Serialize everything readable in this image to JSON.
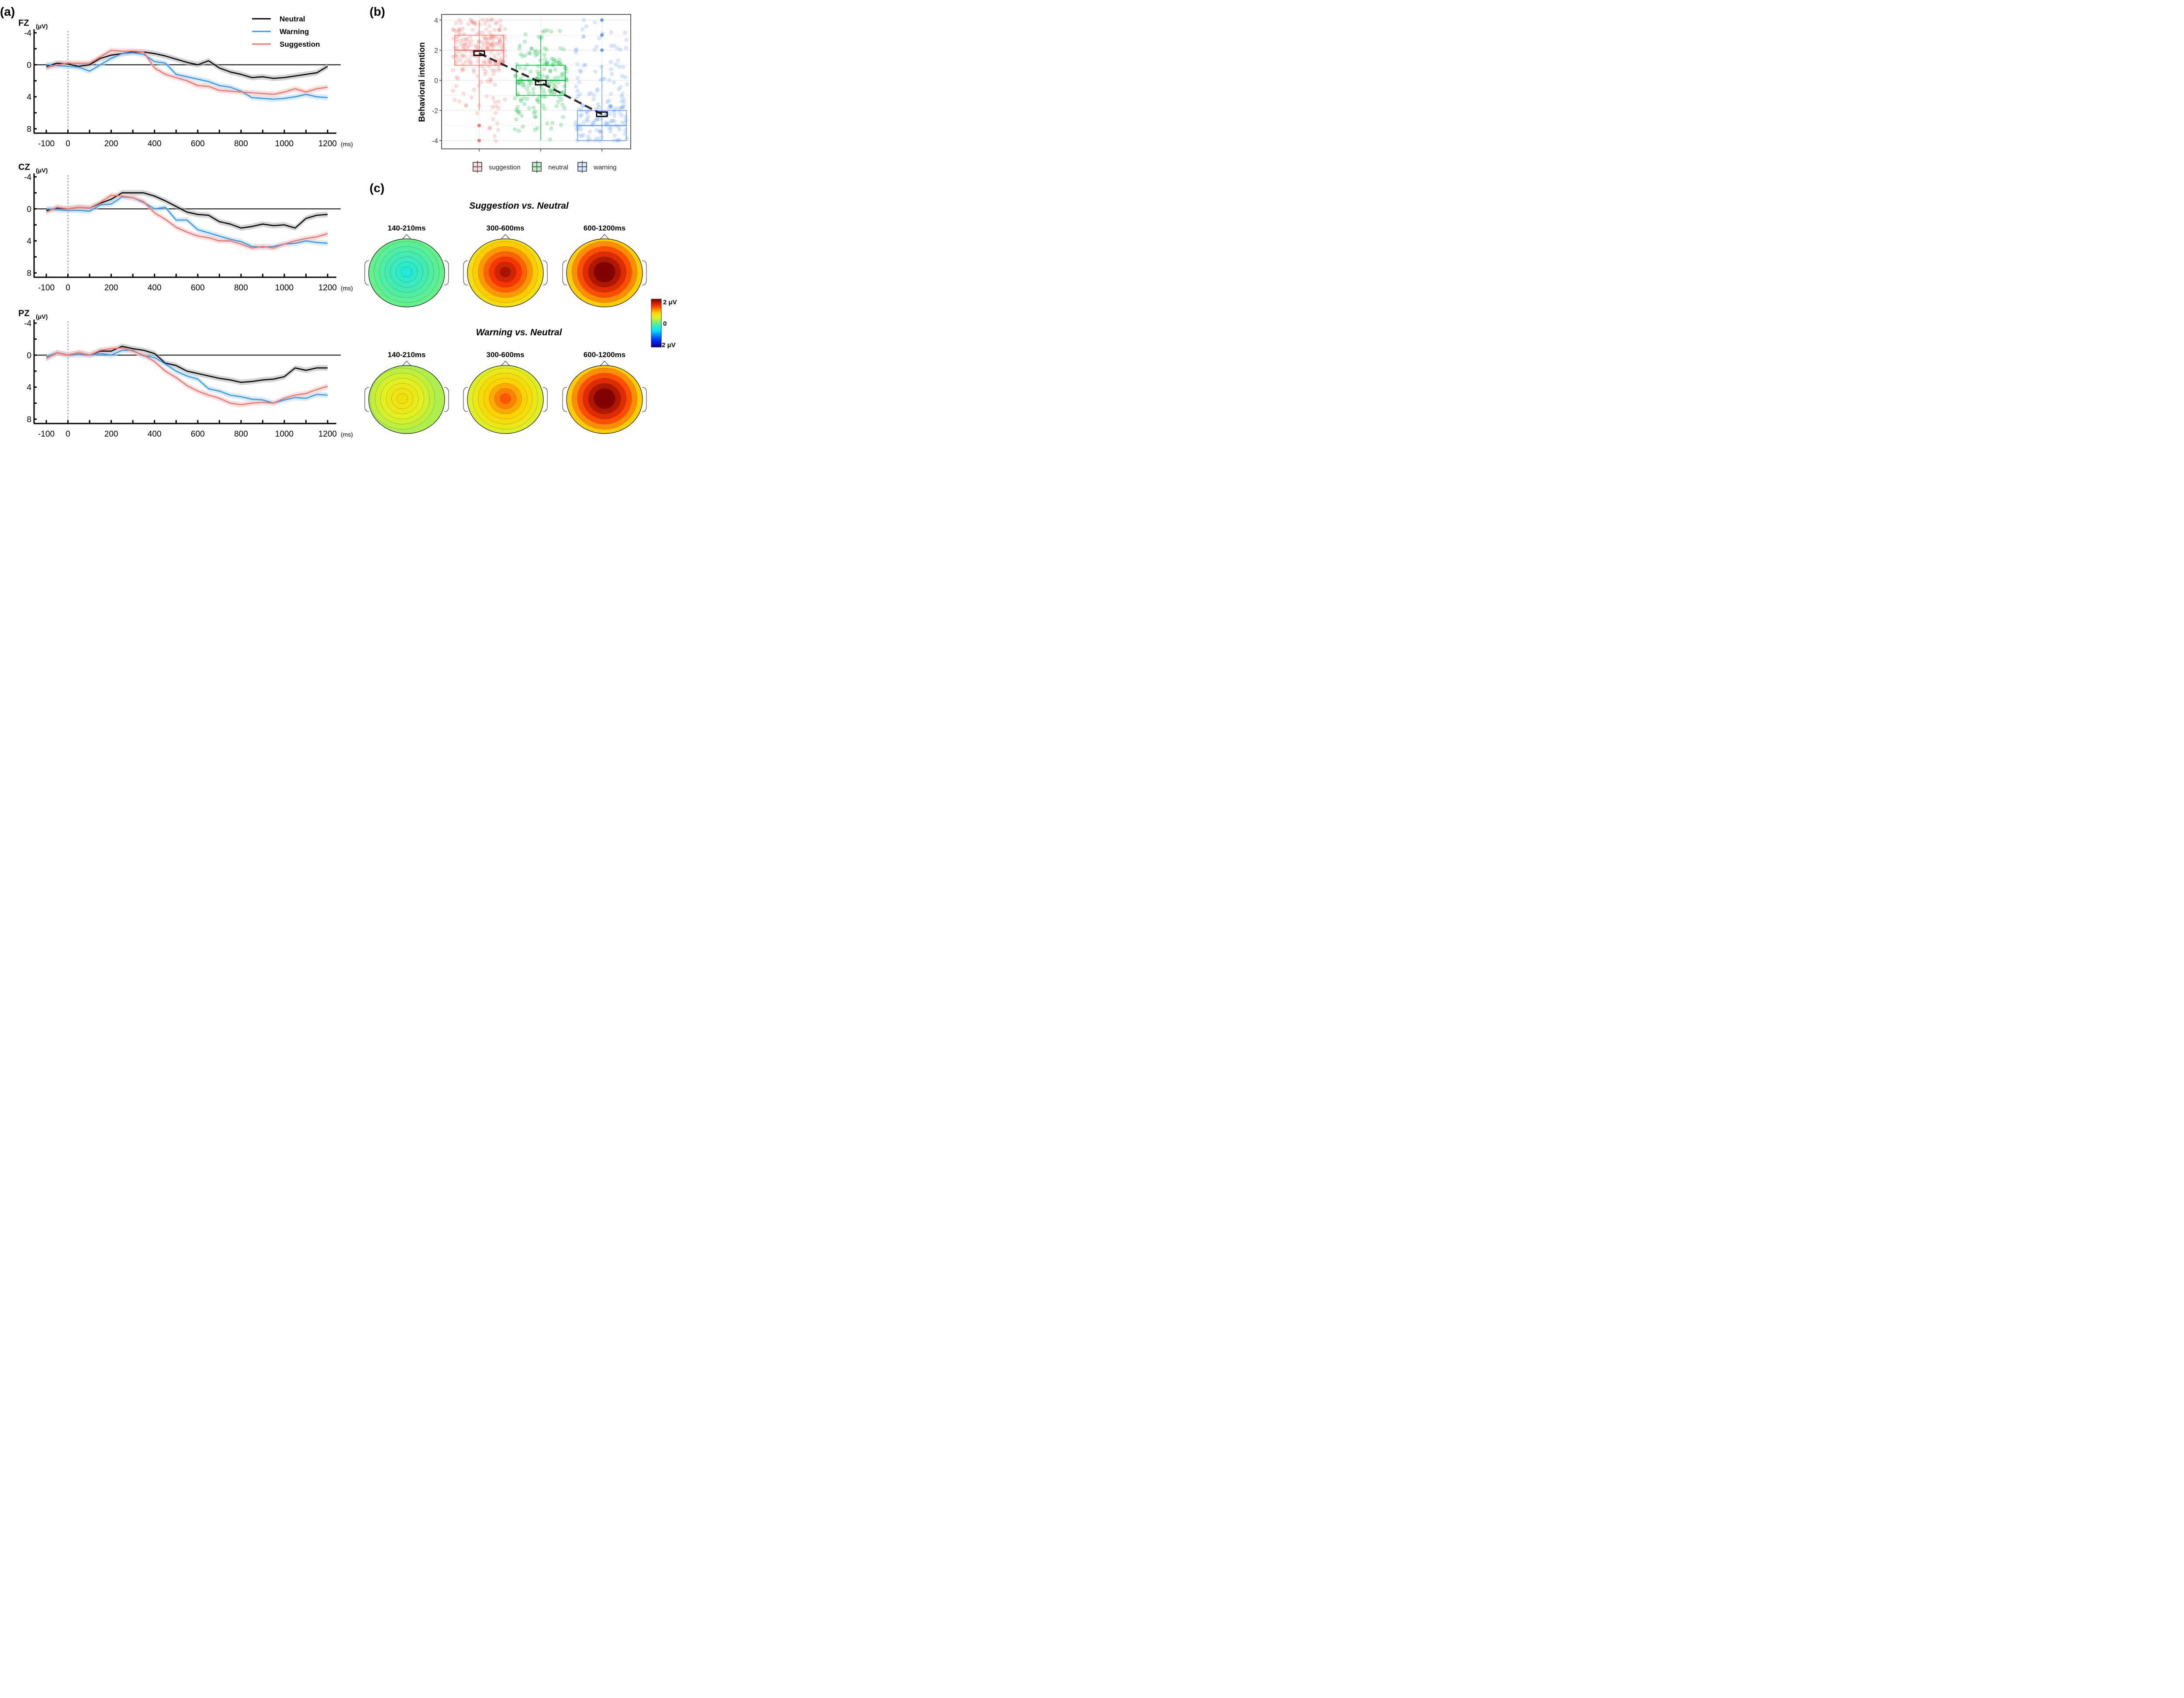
{
  "panel_labels": {
    "a": "(a)",
    "b": "(b)",
    "c": "(c)"
  },
  "chart_data": [
    {
      "type": "line",
      "panel": "a",
      "channels": [
        {
          "name": "FZ",
          "unit": "(μV)"
        },
        {
          "name": "CZ",
          "unit": "(μV)"
        },
        {
          "name": "PZ",
          "unit": "(μV)"
        }
      ],
      "xlabel_unit": "(ms)",
      "xticks": [
        -100,
        0,
        200,
        400,
        600,
        800,
        1000,
        1200
      ],
      "xlim": [
        -100,
        1200
      ],
      "yticks": [
        -4,
        0,
        4,
        8
      ],
      "ylim": [
        -4,
        8
      ],
      "y_inverted": true,
      "onset_marker_ms": 0,
      "legend": [
        {
          "label": "Neutral",
          "color": "#000000"
        },
        {
          "label": "Warning",
          "color": "#3399ee"
        },
        {
          "label": "Suggestion",
          "color": "#f0746a"
        }
      ],
      "x": [
        -100,
        -50,
        0,
        50,
        100,
        150,
        200,
        250,
        300,
        350,
        400,
        450,
        500,
        550,
        600,
        650,
        700,
        750,
        800,
        850,
        900,
        950,
        1000,
        1050,
        1100,
        1150,
        1200
      ],
      "series_by_channel": {
        "FZ": [
          {
            "name": "Neutral",
            "values": [
              0.2,
              -0.2,
              -0.1,
              0.2,
              0.0,
              -0.8,
              -1.2,
              -1.4,
              -1.6,
              -1.6,
              -1.4,
              -1.1,
              -0.7,
              -0.3,
              0.0,
              -0.5,
              0.4,
              0.9,
              1.2,
              1.6,
              1.5,
              1.7,
              1.6,
              1.4,
              1.2,
              1.0,
              0.2
            ]
          },
          {
            "name": "Warning",
            "values": [
              0.0,
              0.1,
              0.2,
              0.3,
              0.8,
              0.0,
              -0.8,
              -1.4,
              -1.5,
              -1.3,
              -0.4,
              -0.2,
              1.2,
              1.5,
              1.8,
              2.1,
              2.6,
              2.8,
              3.3,
              4.1,
              4.2,
              4.3,
              4.2,
              4.0,
              3.7,
              4.0,
              4.1
            ]
          },
          {
            "name": "Suggestion",
            "values": [
              0.4,
              0.0,
              -0.2,
              -0.2,
              -0.2,
              -1.0,
              -1.8,
              -1.7,
              -1.7,
              -1.6,
              0.4,
              1.2,
              1.6,
              2.0,
              2.6,
              2.7,
              3.2,
              3.3,
              3.4,
              3.5,
              3.6,
              3.7,
              3.4,
              3.0,
              3.4,
              3.0,
              2.8
            ]
          }
        ],
        "CZ": [
          {
            "name": "Neutral",
            "values": [
              0.2,
              -0.1,
              0.0,
              -0.2,
              -0.1,
              -0.7,
              -1.2,
              -2.0,
              -2.0,
              -2.0,
              -1.6,
              -1.0,
              -0.3,
              0.4,
              0.7,
              0.8,
              1.6,
              1.9,
              2.4,
              2.2,
              1.9,
              2.1,
              2.0,
              2.4,
              1.2,
              0.8,
              0.7
            ]
          },
          {
            "name": "Warning",
            "values": [
              0.0,
              0.1,
              0.2,
              0.2,
              0.3,
              -0.5,
              -0.6,
              -1.5,
              -1.4,
              -0.8,
              0.0,
              -0.2,
              1.4,
              1.4,
              2.6,
              3.0,
              3.4,
              3.8,
              4.1,
              4.7,
              4.8,
              4.7,
              4.4,
              4.3,
              4.0,
              4.2,
              4.3
            ]
          },
          {
            "name": "Suggestion",
            "values": [
              0.4,
              -0.2,
              0.0,
              -0.2,
              -0.1,
              -0.8,
              -1.7,
              -1.6,
              -1.4,
              -0.9,
              0.5,
              1.3,
              2.3,
              2.9,
              3.4,
              3.6,
              4.0,
              4.0,
              4.4,
              4.9,
              4.7,
              4.9,
              4.4,
              4.0,
              3.7,
              3.5,
              3.1
            ]
          }
        ],
        "PZ": [
          {
            "name": "Neutral",
            "values": [
              0.4,
              -0.3,
              0.0,
              -0.3,
              0.0,
              -0.5,
              -0.5,
              -1.1,
              -0.8,
              -0.6,
              -0.2,
              1.0,
              1.3,
              2.0,
              2.3,
              2.6,
              2.9,
              3.1,
              3.4,
              3.3,
              3.1,
              3.0,
              2.7,
              1.6,
              1.9,
              1.6,
              1.6
            ]
          },
          {
            "name": "Warning",
            "values": [
              0.2,
              -0.3,
              0.0,
              -0.1,
              0.0,
              -0.2,
              0.0,
              -0.6,
              -0.6,
              0.1,
              0.3,
              1.1,
              2.0,
              2.6,
              3.0,
              4.2,
              4.5,
              5.0,
              5.2,
              5.5,
              5.6,
              6.0,
              5.6,
              5.3,
              5.4,
              4.9,
              5.0
            ]
          },
          {
            "name": "Suggestion",
            "values": [
              0.4,
              -0.3,
              0.0,
              -0.3,
              0.0,
              -0.6,
              -0.8,
              -0.9,
              -0.5,
              0.0,
              0.8,
              2.0,
              2.8,
              3.8,
              4.5,
              5.0,
              5.4,
              6.0,
              6.2,
              6.0,
              5.9,
              6.0,
              5.4,
              5.0,
              4.8,
              4.3,
              3.9
            ]
          }
        ]
      }
    },
    {
      "type": "scatter",
      "panel": "b",
      "subtype": "boxplot-with-jitter",
      "ylabel": "Behavioral intention",
      "yticks": [
        -4,
        -2,
        0,
        2,
        4
      ],
      "ylim": [
        -4.3,
        4.5
      ],
      "grid": true,
      "categories": [
        "suggestion",
        "neutral",
        "warning"
      ],
      "colors": [
        "#f8766d",
        "#00ba38",
        "#619cff"
      ],
      "boxes": [
        {
          "name": "suggestion",
          "q1": 1,
          "median": 2,
          "q3": 3,
          "whisker_low": -2,
          "whisker_high": 4,
          "outliers": [
            -3,
            -4
          ],
          "mean": 1.8
        },
        {
          "name": "neutral",
          "q1": -1,
          "median": 0,
          "q3": 1,
          "whisker_low": -4,
          "whisker_high": 3,
          "outliers": [],
          "mean": -0.15
        },
        {
          "name": "warning",
          "q1": -4,
          "median": -3,
          "q3": -2,
          "whisker_low": -4,
          "whisker_high": 1,
          "outliers": [
            2,
            3,
            4
          ],
          "mean": -2.25
        }
      ],
      "legend": [
        "suggestion",
        "neutral",
        "warning"
      ],
      "legend_position": "bottom"
    },
    {
      "type": "heatmap",
      "panel": "c",
      "subtype": "scalp-topography",
      "rows": [
        {
          "title": "Suggestion vs. Neutral",
          "windows": [
            {
              "label": "140-210ms",
              "peak": 0.0,
              "center": -0.4
            },
            {
              "label": "300-600ms",
              "peak": 1.6,
              "center": 1.8
            },
            {
              "label": "600-1200ms",
              "peak": 2.0,
              "center": 2.2
            }
          ]
        },
        {
          "title": "Warning vs. Neutral",
          "windows": [
            {
              "label": "140-210ms",
              "peak": 0.6,
              "center": 0.7
            },
            {
              "label": "300-600ms",
              "peak": 1.0,
              "center": 1.3
            },
            {
              "label": "600-1200ms",
              "peak": 2.0,
              "center": 2.2
            }
          ]
        }
      ],
      "colorbar": {
        "max_label": "2 μV",
        "mid_label": "0",
        "min_label": "-2 μV",
        "range": [
          -2,
          2
        ]
      }
    }
  ]
}
